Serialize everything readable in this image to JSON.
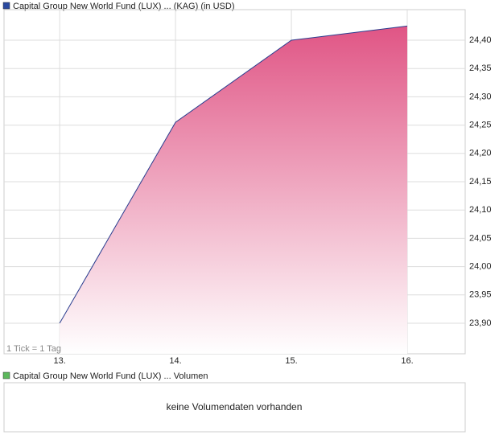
{
  "chart_data": {
    "type": "area",
    "title": "Capital Group New World Fund (LUX) ... (KAG) (in USD)",
    "legend_color": "#2a4aa0",
    "x": [
      13,
      14,
      15,
      16
    ],
    "values": [
      23.9,
      24.255,
      24.4,
      24.425
    ],
    "color": "#e05585",
    "line_color": "#2a3d8f",
    "xlim": [
      12.52,
      16.5
    ],
    "xticks": [
      {
        "value": 13,
        "label": "13."
      },
      {
        "value": 14,
        "label": "14."
      },
      {
        "value": 15,
        "label": "15."
      },
      {
        "value": 16,
        "label": "16."
      }
    ],
    "ylim": [
      23.846,
      24.454
    ],
    "yticks": [
      {
        "value": 23.9,
        "label": "23,90"
      },
      {
        "value": 23.95,
        "label": "23,95"
      },
      {
        "value": 24.0,
        "label": "24,00"
      },
      {
        "value": 24.05,
        "label": "24,05"
      },
      {
        "value": 24.1,
        "label": "24,10"
      },
      {
        "value": 24.15,
        "label": "24,15"
      },
      {
        "value": 24.2,
        "label": "24,20"
      },
      {
        "value": 24.25,
        "label": "24,25"
      },
      {
        "value": 24.3,
        "label": "24,30"
      },
      {
        "value": 24.35,
        "label": "24,35"
      },
      {
        "value": 24.4,
        "label": "24,40"
      }
    ],
    "grid": true,
    "annotation": "1 Tick = 1 Tag"
  },
  "volume_panel": {
    "title": "Capital Group New World Fund (LUX) ... Volumen",
    "legend_color": "#5cb85c",
    "message": "keine Volumendaten vorhanden"
  }
}
